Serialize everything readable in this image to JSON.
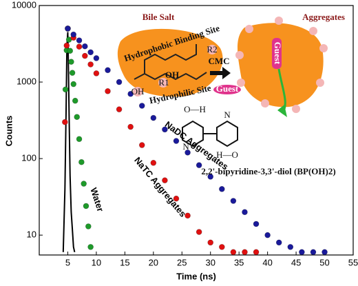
{
  "chart_data": {
    "type": "scatter",
    "x_label": "Time (ns)",
    "y_label": "Counts",
    "xlim": [
      0,
      55
    ],
    "xticks": [
      5,
      10,
      15,
      20,
      25,
      30,
      35,
      40,
      45,
      50,
      55
    ],
    "ylim": [
      5.5,
      10000
    ],
    "yticks": [
      10,
      100,
      1000,
      10000
    ],
    "ylog": true,
    "series": [
      {
        "color": "#000000",
        "mark": "line",
        "x": [
          4.2,
          4.5,
          4.7,
          4.85,
          5.0,
          5.1,
          5.25,
          5.4,
          5.6,
          5.8,
          6.0,
          6.2
        ],
        "values": [
          6,
          40,
          400,
          3000,
          4500,
          1800,
          300,
          60,
          20,
          12,
          7,
          6
        ]
      },
      {
        "name": "Water",
        "color": "#1e9a2a",
        "mark": "dot",
        "x": [
          4.6,
          4.8,
          5.0,
          5.2,
          5.4,
          5.6,
          5.8,
          6.0,
          6.3,
          6.6,
          7.0,
          7.4,
          7.8,
          8.2,
          8.6,
          9.0
        ],
        "values": [
          800,
          2600,
          5000,
          3580,
          2560,
          1840,
          1320,
          940,
          570,
          350,
          180,
          90,
          47,
          24,
          13,
          7
        ]
      },
      {
        "name": "NaTC Aggregates",
        "color": "#e01010",
        "mark": "dot",
        "x": [
          4.5,
          4.8,
          5,
          6,
          7,
          8,
          9,
          10,
          12,
          14,
          16,
          18,
          20,
          22,
          24,
          26,
          28,
          30,
          32,
          34,
          36,
          38
        ],
        "values": [
          300,
          3000,
          5000,
          3800,
          2900,
          2200,
          1700,
          1300,
          760,
          440,
          260,
          150,
          88,
          52,
          30,
          18,
          11,
          8,
          7,
          6,
          6,
          6
        ]
      },
      {
        "name": "NaDC Aggregates",
        "color": "#1a1a9a",
        "mark": "dot",
        "x": [
          5,
          6,
          7,
          8,
          9,
          10,
          12,
          14,
          16,
          18,
          20,
          22,
          24,
          26,
          28,
          30,
          32,
          34,
          36,
          38,
          40,
          42,
          44,
          46,
          48,
          50
        ],
        "values": [
          5000,
          4180,
          3500,
          2930,
          2450,
          2050,
          1430,
          1000,
          700,
          490,
          340,
          240,
          170,
          120,
          82,
          58,
          40,
          28,
          20,
          14,
          10,
          8,
          7,
          6,
          6,
          6
        ]
      }
    ],
    "annotations": [
      "Bile Salt",
      "Aggregates",
      "Hydrophobic Binding Site",
      "Hydrophilic Site",
      "CMC",
      "Guest",
      "Guest",
      "OH",
      "OH",
      "R1",
      "R2",
      "2,2'-bipyridine-3,3'-diol (BP(OH)2)",
      "O—H",
      "N",
      "N",
      "H—O"
    ]
  }
}
